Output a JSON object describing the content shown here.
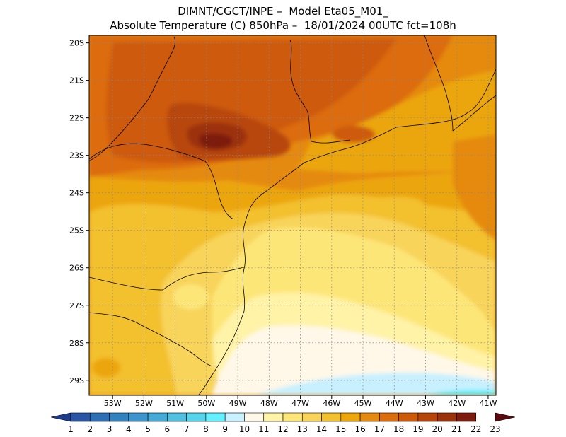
{
  "header": {
    "line1": "DIMNT/CGCT/INPE –  Model Eta05_M01_",
    "line2": "Absolute Temperature (C) 850hPa –  18/01/2024 00UTC fct=108h"
  },
  "map": {
    "lon_range": [
      -53.75,
      -40.75
    ],
    "lat_range": [
      -29.4,
      -19.8
    ],
    "lat_ticks": [
      "20S",
      "21S",
      "22S",
      "23S",
      "24S",
      "25S",
      "26S",
      "27S",
      "28S",
      "29S"
    ],
    "lon_ticks": [
      "53W",
      "52W",
      "51W",
      "50W",
      "49W",
      "48W",
      "47W",
      "46W",
      "45W",
      "44W",
      "43W",
      "42W",
      "41W"
    ],
    "grid": "dotted"
  },
  "colorbar": {
    "labels": [
      "1",
      "2",
      "3",
      "4",
      "5",
      "6",
      "7",
      "8",
      "9",
      "10",
      "11",
      "12",
      "13",
      "14",
      "15",
      "16",
      "17",
      "18",
      "19",
      "20",
      "21",
      "22",
      "23"
    ],
    "colors": [
      "#1e3c8c",
      "#2a55a5",
      "#2d6eb5",
      "#3282c0",
      "#3c96cd",
      "#46aad7",
      "#4fc0e0",
      "#55d5ea",
      "#64f0ff",
      "#c8f0ff",
      "#fff8e8",
      "#fff3a8",
      "#fde678",
      "#f8d45a",
      "#f3c02e",
      "#eca60a",
      "#e58a10",
      "#dc6c0c",
      "#cd5a08",
      "#b8460a",
      "#9c320c",
      "#7d1c0c",
      "#5a0a0e"
    ]
  }
}
